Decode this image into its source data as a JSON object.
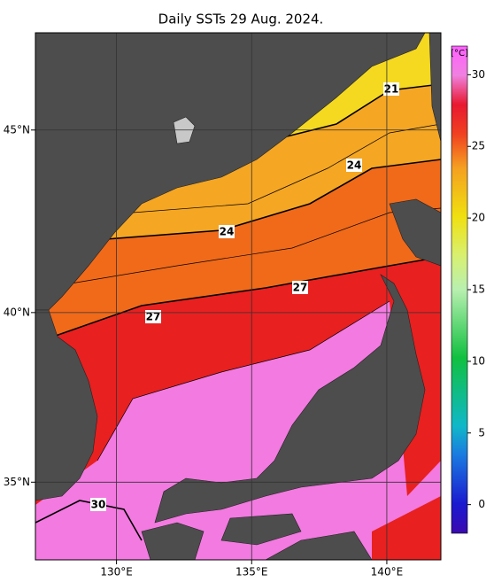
{
  "map": {
    "title": "Daily SSTs 29 Aug. 2024.",
    "lonlim": [
      127,
      142
    ],
    "latlim": [
      32.6,
      47.5
    ],
    "lon_ticks": [
      {
        "value": 130,
        "label": "130°E"
      },
      {
        "value": 135,
        "label": "135°E"
      },
      {
        "value": 140,
        "label": "140°E"
      }
    ],
    "lat_ticks": [
      {
        "value": 35,
        "label": "35°N"
      },
      {
        "value": 40,
        "label": "40°N"
      },
      {
        "value": 45,
        "label": "45°N"
      }
    ],
    "contour_labels": [
      "21",
      "24",
      "24",
      "27",
      "27",
      "30"
    ],
    "colorbar": {
      "label": "[°C]",
      "lim": [
        -2,
        32
      ],
      "ticks": [
        0,
        5,
        10,
        15,
        20,
        25,
        30
      ]
    }
  }
}
